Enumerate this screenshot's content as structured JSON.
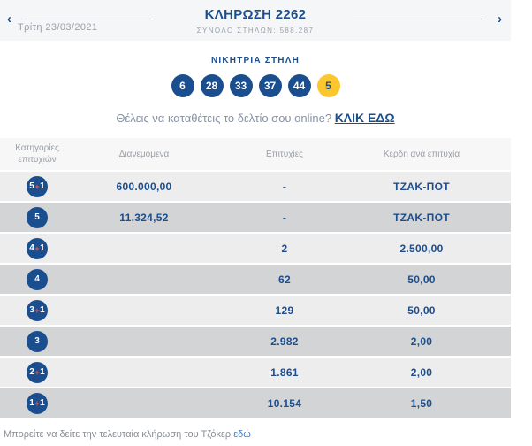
{
  "colors": {
    "brand_blue": "#1b4e8e",
    "bonus_yellow": "#fcc72e",
    "plus_red": "#e2574c",
    "row_light": "#ededee",
    "row_gray": "#d3d4d6"
  },
  "topbar": {
    "prev_icon": "‹",
    "next_icon": "›",
    "date": "Τρίτη 23/03/2021",
    "title": "ΚΛΗΡΩΣΗ 2262",
    "total_columns": "ΣΥΝΟΛΟ ΣΤΗΛΩΝ: 588.287"
  },
  "winning": {
    "title": "ΝΙΚΗΤΡΙΑ ΣΤΗΛΗ",
    "numbers": [
      "6",
      "28",
      "33",
      "37",
      "44"
    ],
    "bonus": "5"
  },
  "cta": {
    "text": "Θέλεις να καταθέτεις το δελτίο σου online? ",
    "link_label": "ΚΛΙΚ ΕΔΩ"
  },
  "table": {
    "headers": {
      "categories_line1": "Κατηγορίες",
      "categories_line2": "επιτυχιών",
      "distributed": "Διανεμόμενα",
      "winners": "Επιτυχίες",
      "prize": "Κέρδη ανά επιτυχία"
    },
    "rows": [
      {
        "category": "5+1",
        "distributed": "600.000,00",
        "winners": "-",
        "prize": "ΤΖΑΚ-ΠΟΤ"
      },
      {
        "category": "5",
        "distributed": "11.324,52",
        "winners": "-",
        "prize": "ΤΖΑΚ-ΠΟΤ"
      },
      {
        "category": "4+1",
        "distributed": "",
        "winners": "2",
        "prize": "2.500,00"
      },
      {
        "category": "4",
        "distributed": "",
        "winners": "62",
        "prize": "50,00"
      },
      {
        "category": "3+1",
        "distributed": "",
        "winners": "129",
        "prize": "50,00"
      },
      {
        "category": "3",
        "distributed": "",
        "winners": "2.982",
        "prize": "2,00"
      },
      {
        "category": "2+1",
        "distributed": "",
        "winners": "1.861",
        "prize": "2,00"
      },
      {
        "category": "1+1",
        "distributed": "",
        "winners": "10.154",
        "prize": "1,50"
      }
    ]
  },
  "footer": {
    "text": "Μπορείτε να δείτε την τελευταία κλήρωση του Τζόκερ ",
    "link_label": "εδώ"
  }
}
